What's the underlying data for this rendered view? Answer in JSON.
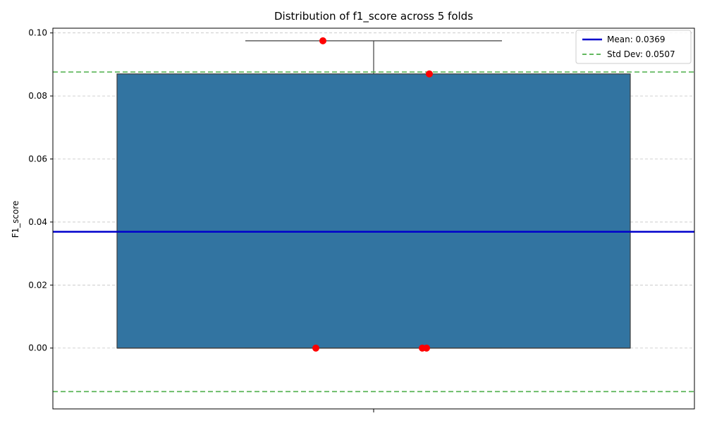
{
  "chart_data": {
    "type": "box",
    "title": "Distribution of f1_score across 5 folds",
    "xlabel": "",
    "ylabel": "F1_score",
    "ylim": [
      -0.0193,
      0.1015
    ],
    "yticks": [
      "0.00",
      "0.02",
      "0.04",
      "0.06",
      "0.08",
      "0.10"
    ],
    "grid": "horizontal dashed",
    "legend_position": "top-right",
    "box": {
      "q1": 0.0,
      "median": 0.0,
      "q3": 0.087,
      "whisker_low": 0.0,
      "whisker_high": 0.0975,
      "color": "#3274a1"
    },
    "points": {
      "name": "folds",
      "color": "#ff0000",
      "values": [
        0.0975,
        0.087,
        0.0,
        0.0,
        0.0
      ]
    },
    "mean": {
      "label": "Mean: 0.0369",
      "value": 0.0369,
      "color": "#0000cc"
    },
    "std": {
      "label": "Std Dev: 0.0507",
      "upper": 0.0876,
      "lower": -0.0138,
      "color": "#4daf4a"
    }
  }
}
